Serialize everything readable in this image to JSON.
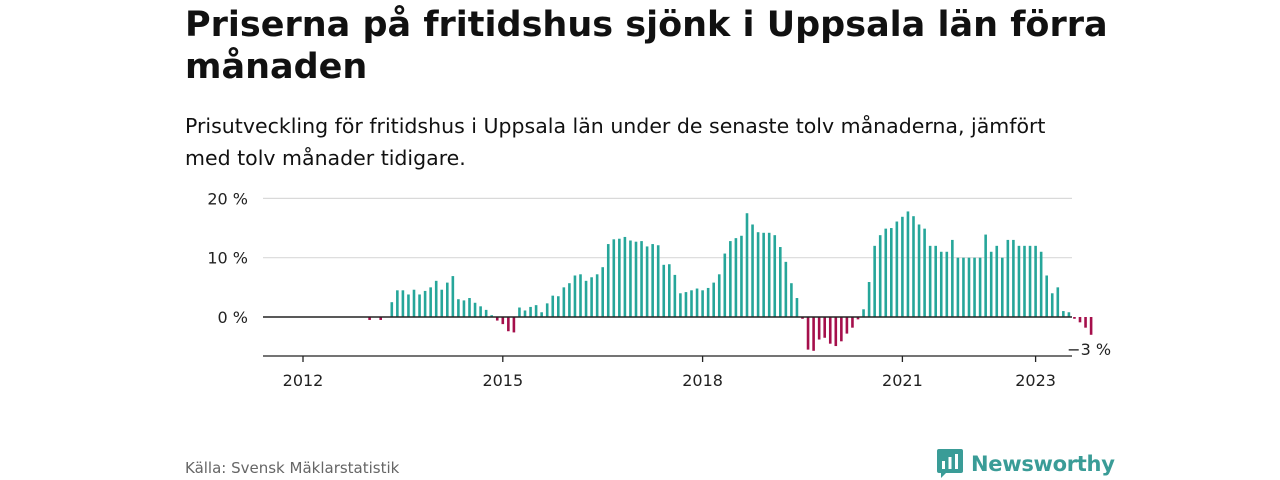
{
  "title": "Priserna på fritidshus sjönk i Uppsala län förra månaden",
  "subtitle": "Prisutveckling för fritidshus i Uppsala län under de senaste tolv månaderna, jämfört med tolv månader tidigare.",
  "source": "Källa: Svensk Mäklarstatistik",
  "brand": "Newsworthy",
  "colors": {
    "positive": "#26a69a",
    "negative": "#a50f4b",
    "brand": "#3a9c97"
  },
  "chart_data": {
    "type": "bar",
    "x_start": "2012-01",
    "frequency": "monthly",
    "y_ticks": [
      {
        "value": 20,
        "label": "20 %"
      },
      {
        "value": 10,
        "label": "10 %"
      },
      {
        "value": 0,
        "label": "0 %"
      }
    ],
    "x_ticks": [
      {
        "year": 2012,
        "label": "2012"
      },
      {
        "year": 2015,
        "label": "2015"
      },
      {
        "year": 2018,
        "label": "2018"
      },
      {
        "year": 2021,
        "label": "2021"
      },
      {
        "year": 2023,
        "label": "2023"
      }
    ],
    "ylim": [
      -6.5,
      20
    ],
    "annotation": {
      "label": "−3 %",
      "value": -3
    },
    "values": [
      0,
      0,
      0,
      0,
      0,
      0,
      0,
      0,
      0,
      0,
      0,
      0,
      -0.5,
      0,
      -0.5,
      0,
      2.5,
      4.5,
      4.5,
      3.8,
      4.6,
      3.8,
      4.4,
      5,
      6.1,
      4.6,
      5.8,
      6.9,
      3,
      2.8,
      3.2,
      2.4,
      1.8,
      1.2,
      0.3,
      -0.6,
      -1.2,
      -2.4,
      -2.6,
      1.6,
      1.1,
      1.7,
      2,
      0.8,
      2.3,
      3.6,
      3.5,
      5,
      5.7,
      7,
      7.2,
      6.1,
      6.7,
      7.2,
      8.4,
      12.3,
      13.1,
      13.2,
      13.5,
      12.9,
      12.7,
      12.8,
      11.9,
      12.3,
      12.1,
      8.8,
      8.9,
      7.1,
      4,
      4.2,
      4.5,
      4.8,
      4.5,
      4.9,
      5.8,
      7.2,
      10.7,
      12.8,
      13.3,
      13.7,
      17.5,
      15.6,
      14.3,
      14.2,
      14.2,
      13.8,
      11.8,
      9.3,
      5.7,
      3.2,
      -0.3,
      -5.5,
      -5.7,
      -3.8,
      -3.5,
      -4.5,
      -4.9,
      -4.1,
      -2.8,
      -1.8,
      -0.4,
      1.3,
      5.9,
      12,
      13.8,
      14.9,
      15,
      16.1,
      16.9,
      17.8,
      17,
      15.6,
      14.9,
      12,
      12,
      11,
      11,
      13,
      10,
      10,
      10,
      10,
      10,
      13.9,
      11,
      12,
      10,
      13,
      13,
      12,
      12,
      12,
      12,
      11,
      7,
      4,
      5,
      1,
      0.8,
      -0.3,
      -0.9,
      -1.8,
      -3
    ]
  }
}
